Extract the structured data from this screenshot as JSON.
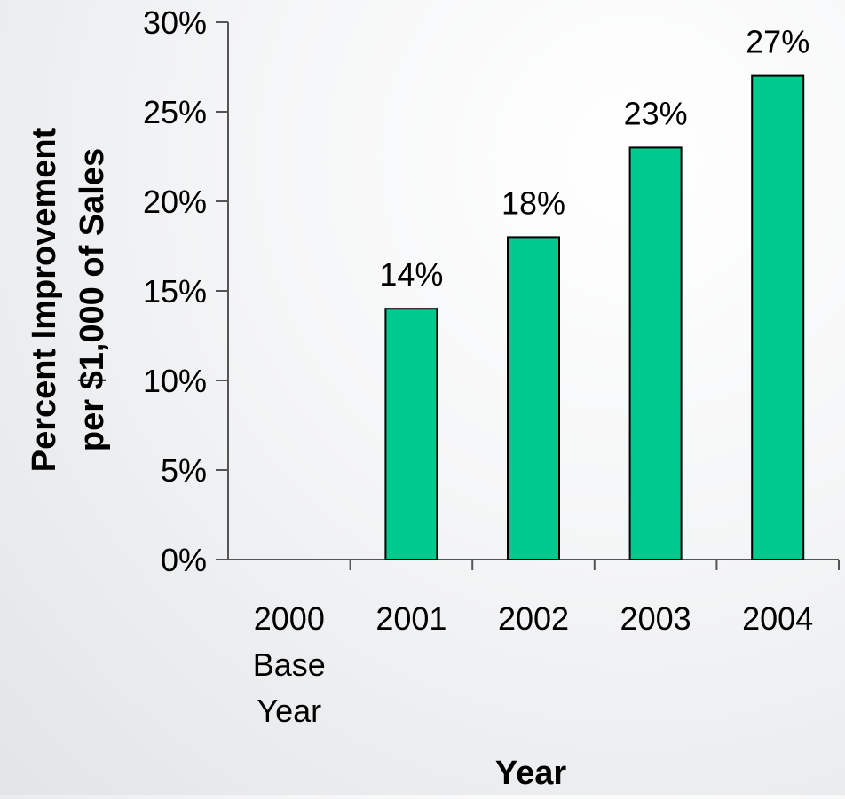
{
  "colors": {
    "bar_fill": "#00c98e",
    "bar_stroke": "#000000",
    "axis": "#555555",
    "text": "#000000"
  },
  "chart_data": {
    "type": "bar",
    "categories": [
      "2000 Base Year",
      "2001",
      "2002",
      "2003",
      "2004"
    ],
    "category_lines": [
      [
        "2000",
        "Base",
        "Year"
      ],
      [
        "2001"
      ],
      [
        "2002"
      ],
      [
        "2003"
      ],
      [
        "2004"
      ]
    ],
    "values": [
      0,
      14,
      18,
      23,
      27
    ],
    "data_labels": [
      "",
      "14%",
      "18%",
      "23%",
      "27%"
    ],
    "title": "",
    "xlabel": "Year",
    "ylabel_lines": [
      "Percent Improvement",
      "per $1,000 of Sales"
    ],
    "ylim": [
      0,
      30
    ],
    "yticks": [
      0,
      5,
      10,
      15,
      20,
      25,
      30
    ],
    "ytick_labels": [
      "0%",
      "5%",
      "10%",
      "15%",
      "20%",
      "25%",
      "30%"
    ],
    "grid": false,
    "legend": "none"
  }
}
